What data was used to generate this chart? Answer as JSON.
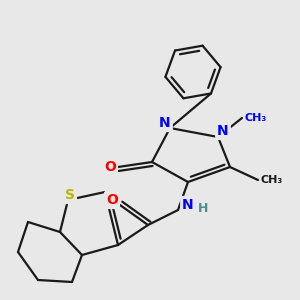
{
  "background_color": "#e8e8e8",
  "bond_color": "#1a1a1a",
  "atom_colors": {
    "N": "#0000ff",
    "O": "#ff0000",
    "S": "#b8b800",
    "H": "#4a9090",
    "C": "#1a1a1a"
  },
  "bond_width": 1.6,
  "font_size_atom": 10
}
